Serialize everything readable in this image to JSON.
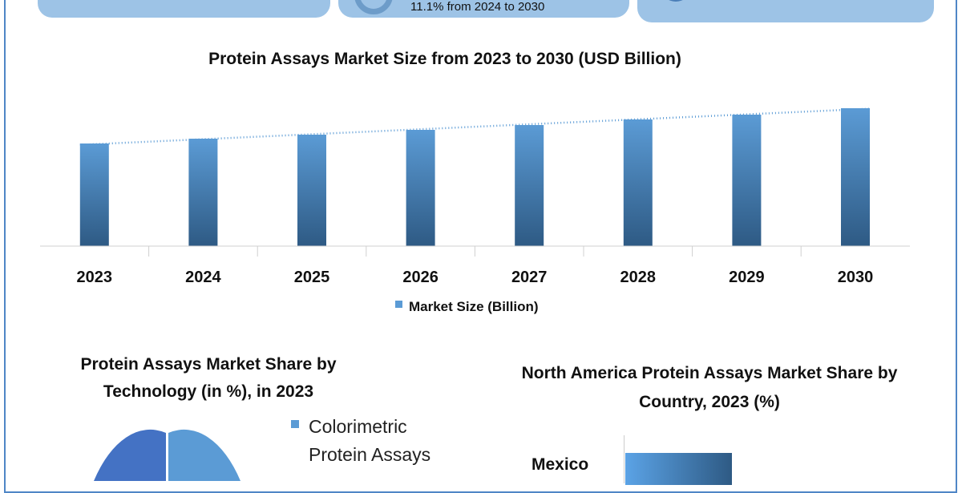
{
  "cards": [
    {
      "text": ""
    },
    {
      "text": "11.1% from 2024 to 2030",
      "icon": "ring-icon"
    },
    {
      "text": "",
      "icon": "circle-icon"
    }
  ],
  "chart_data": [
    {
      "type": "bar",
      "title": "Protein Assays Market Size from 2023 to 2030 (USD Billion)",
      "categories": [
        "2023",
        "2024",
        "2025",
        "2026",
        "2027",
        "2028",
        "2029",
        "2030"
      ],
      "series": [
        {
          "name": "Market Size (Billion)",
          "values": [
            128,
            134,
            139,
            145,
            151,
            158,
            164,
            172
          ]
        }
      ],
      "note": "values are relative (no y-axis shown)",
      "trendline": "linear dotted",
      "legend": "bottom",
      "colors": {
        "bar_top": "#5b9bd5",
        "bar_bottom": "#2e5a84",
        "trend": "#5b9bd5"
      }
    },
    {
      "type": "pie",
      "title": "Protein Assays Market Share by Technology (in %), in 2023",
      "legend": [
        "Colorimetric Protein Assays"
      ],
      "colors": [
        "#5b9bd5",
        "#4472c4"
      ]
    },
    {
      "type": "bar",
      "orientation": "horizontal",
      "title": "North America Protein Assays Market Share by Country, 2023 (%)",
      "categories": [
        "Mexico"
      ]
    }
  ]
}
